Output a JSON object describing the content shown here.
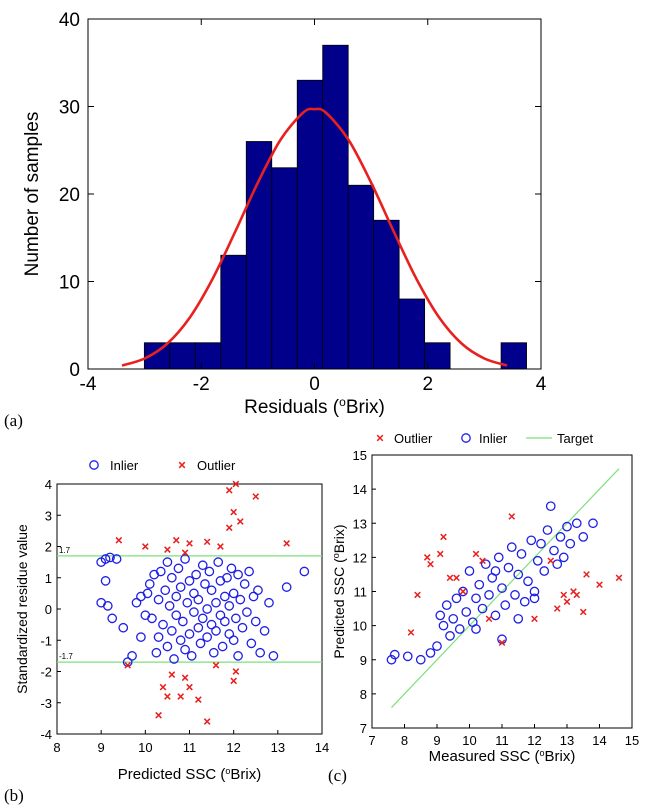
{
  "colors": {
    "bar_fill": "#00008B",
    "bar_edge": "#000000",
    "fit_curve": "#E8201E",
    "inlier": "#1E1EE6",
    "outlier": "#E8201E",
    "threshold": "#7CE07C",
    "target": "#7CE07C"
  },
  "chart_data": [
    {
      "panel": "(a)",
      "type": "bar",
      "xlabel": "Residuals (oBrix)",
      "ylabel": "Number of samples",
      "xlim": [
        -4,
        4
      ],
      "ylim": [
        0,
        40
      ],
      "xticks": [
        "-4",
        "-2",
        "0",
        "2",
        "4"
      ],
      "yticks": [
        "0",
        "10",
        "20",
        "30",
        "40"
      ],
      "grid": false,
      "bin_width": 0.45,
      "bin_centers": [
        -2.78,
        -2.33,
        -1.88,
        -1.43,
        -0.98,
        -0.53,
        -0.08,
        0.37,
        0.82,
        1.27,
        1.72,
        2.17,
        2.62,
        3.07,
        3.52
      ],
      "counts": [
        3,
        3,
        3,
        13,
        26,
        23,
        33,
        37,
        21,
        17,
        8,
        3,
        0,
        0,
        3
      ],
      "fit_curve": {
        "x": [
          -3.4,
          -3.0,
          -2.6,
          -2.2,
          -1.8,
          -1.4,
          -1.0,
          -0.6,
          -0.2,
          0.0,
          0.2,
          0.6,
          1.0,
          1.4,
          1.8,
          2.2,
          2.6,
          3.0,
          3.4
        ],
        "y": [
          0.4,
          1.2,
          2.9,
          5.9,
          10.3,
          15.7,
          21.3,
          26.2,
          29.3,
          29.7,
          29.3,
          26.2,
          21.3,
          15.7,
          10.3,
          5.9,
          2.9,
          1.2,
          0.4
        ]
      }
    },
    {
      "panel": "(b)",
      "type": "scatter",
      "xlabel": "Predicted SSC (oBrix)",
      "ylabel": "Standardized residue value",
      "xlim": [
        8,
        14
      ],
      "ylim": [
        -4,
        4
      ],
      "xticks": [
        "8",
        "9",
        "10",
        "11",
        "12",
        "13",
        "14"
      ],
      "yticks": [
        "-4",
        "-3",
        "-2",
        "-1",
        "0",
        "1",
        "2",
        "3",
        "4"
      ],
      "grid": false,
      "legend_position": "top",
      "legend": [
        "Inlier",
        "Outlier"
      ],
      "threshold_labels": [
        "1.7",
        "-1.7"
      ],
      "thresholds": [
        1.7,
        -1.7
      ],
      "series": [
        {
          "name": "Inlier",
          "points": [
            [
              9.0,
              1.5
            ],
            [
              9.1,
              1.6
            ],
            [
              9.2,
              1.65
            ],
            [
              9.35,
              1.6
            ],
            [
              9.0,
              0.2
            ],
            [
              9.1,
              0.9
            ],
            [
              9.15,
              0.1
            ],
            [
              9.25,
              -0.3
            ],
            [
              9.5,
              -0.6
            ],
            [
              9.6,
              -1.7
            ],
            [
              9.7,
              -1.5
            ],
            [
              9.8,
              0.2
            ],
            [
              9.9,
              -0.9
            ],
            [
              9.9,
              0.4
            ],
            [
              10.0,
              -0.2
            ],
            [
              10.05,
              0.5
            ],
            [
              10.1,
              0.8
            ],
            [
              10.15,
              -0.3
            ],
            [
              10.2,
              1.1
            ],
            [
              10.25,
              -1.4
            ],
            [
              10.3,
              -0.9
            ],
            [
              10.3,
              0.3
            ],
            [
              10.35,
              1.2
            ],
            [
              10.4,
              -0.5
            ],
            [
              10.45,
              0.6
            ],
            [
              10.5,
              -1.2
            ],
            [
              10.5,
              1.5
            ],
            [
              10.55,
              0.1
            ],
            [
              10.6,
              -0.7
            ],
            [
              10.6,
              1.0
            ],
            [
              10.65,
              -1.6
            ],
            [
              10.7,
              0.4
            ],
            [
              10.7,
              -0.2
            ],
            [
              10.75,
              1.3
            ],
            [
              10.8,
              -1.0
            ],
            [
              10.8,
              0.7
            ],
            [
              10.85,
              -0.4
            ],
            [
              10.9,
              1.6
            ],
            [
              10.9,
              -1.3
            ],
            [
              10.95,
              0.2
            ],
            [
              11.0,
              -0.8
            ],
            [
              11.0,
              0.9
            ],
            [
              11.05,
              -1.5
            ],
            [
              11.1,
              0.5
            ],
            [
              11.1,
              -0.1
            ],
            [
              11.15,
              1.1
            ],
            [
              11.2,
              -0.6
            ],
            [
              11.2,
              0.3
            ],
            [
              11.25,
              -1.1
            ],
            [
              11.3,
              1.4
            ],
            [
              11.3,
              -0.3
            ],
            [
              11.35,
              0.8
            ],
            [
              11.4,
              -0.9
            ],
            [
              11.4,
              0.0
            ],
            [
              11.45,
              1.2
            ],
            [
              11.5,
              -0.5
            ],
            [
              11.5,
              0.6
            ],
            [
              11.55,
              -1.4
            ],
            [
              11.6,
              0.2
            ],
            [
              11.6,
              -0.7
            ],
            [
              11.65,
              1.5
            ],
            [
              11.7,
              -0.2
            ],
            [
              11.7,
              0.9
            ],
            [
              11.75,
              -1.2
            ],
            [
              11.8,
              0.4
            ],
            [
              11.8,
              -0.4
            ],
            [
              11.85,
              1.0
            ],
            [
              11.9,
              -0.8
            ],
            [
              11.9,
              0.1
            ],
            [
              11.95,
              1.3
            ],
            [
              12.0,
              -1.0
            ],
            [
              12.0,
              0.5
            ],
            [
              12.05,
              -0.3
            ],
            [
              12.1,
              1.1
            ],
            [
              12.1,
              -1.5
            ],
            [
              12.15,
              0.3
            ],
            [
              12.2,
              -0.6
            ],
            [
              12.25,
              0.8
            ],
            [
              12.3,
              -0.1
            ],
            [
              12.35,
              1.2
            ],
            [
              12.4,
              -1.1
            ],
            [
              12.45,
              0.4
            ],
            [
              12.5,
              -0.4
            ],
            [
              12.55,
              0.6
            ],
            [
              12.6,
              -1.4
            ],
            [
              12.7,
              -0.7
            ],
            [
              12.8,
              0.2
            ],
            [
              13.2,
              0.7
            ],
            [
              13.6,
              1.2
            ],
            [
              12.9,
              -1.5
            ]
          ]
        },
        {
          "name": "Outlier",
          "points": [
            [
              9.4,
              2.2
            ],
            [
              10.0,
              2.0
            ],
            [
              10.5,
              1.9
            ],
            [
              10.7,
              2.2
            ],
            [
              10.9,
              1.8
            ],
            [
              11.0,
              2.1
            ],
            [
              11.4,
              2.15
            ],
            [
              11.7,
              2.0
            ],
            [
              11.9,
              2.6
            ],
            [
              12.0,
              3.1
            ],
            [
              12.05,
              4.0
            ],
            [
              12.15,
              2.8
            ],
            [
              11.9,
              3.8
            ],
            [
              12.5,
              3.6
            ],
            [
              13.2,
              2.1
            ],
            [
              9.6,
              -1.8
            ],
            [
              10.4,
              -2.5
            ],
            [
              10.3,
              -3.4
            ],
            [
              10.5,
              -2.8
            ],
            [
              10.6,
              -2.1
            ],
            [
              10.9,
              -2.2
            ],
            [
              11.0,
              -2.5
            ],
            [
              11.2,
              -2.9
            ],
            [
              11.4,
              -3.6
            ],
            [
              11.6,
              -1.8
            ],
            [
              12.0,
              -2.3
            ],
            [
              12.05,
              -2.0
            ],
            [
              10.8,
              -2.8
            ]
          ]
        }
      ]
    },
    {
      "panel": "(c)",
      "type": "scatter",
      "xlabel": "Measured SSC (oBrix)",
      "ylabel": "Predicted SSC (oBrix)",
      "xlim": [
        7,
        15
      ],
      "ylim": [
        7,
        15
      ],
      "xticks": [
        "7",
        "8",
        "9",
        "10",
        "11",
        "12",
        "13",
        "14",
        "15"
      ],
      "yticks": [
        "7",
        "8",
        "9",
        "10",
        "11",
        "12",
        "13",
        "14",
        "15"
      ],
      "grid": false,
      "legend_position": "top",
      "legend": [
        "Outlier",
        "Inlier",
        "Target"
      ],
      "target_line": {
        "x": [
          7.6,
          14.6
        ],
        "y": [
          7.6,
          14.6
        ]
      },
      "series": [
        {
          "name": "Inlier",
          "points": [
            [
              7.6,
              9.0
            ],
            [
              7.7,
              9.15
            ],
            [
              8.1,
              9.1
            ],
            [
              8.5,
              9.0
            ],
            [
              8.8,
              9.2
            ],
            [
              9.0,
              9.4
            ],
            [
              9.1,
              10.3
            ],
            [
              9.2,
              10.0
            ],
            [
              9.3,
              10.6
            ],
            [
              9.4,
              9.7
            ],
            [
              9.5,
              10.2
            ],
            [
              9.6,
              10.8
            ],
            [
              9.7,
              9.9
            ],
            [
              9.8,
              11.0
            ],
            [
              9.9,
              10.4
            ],
            [
              10.0,
              11.6
            ],
            [
              10.1,
              10.1
            ],
            [
              10.2,
              10.8
            ],
            [
              10.3,
              11.2
            ],
            [
              10.4,
              10.5
            ],
            [
              10.5,
              11.8
            ],
            [
              10.6,
              10.9
            ],
            [
              10.7,
              11.4
            ],
            [
              10.8,
              10.3
            ],
            [
              10.9,
              12.0
            ],
            [
              11.0,
              11.1
            ],
            [
              11.1,
              10.6
            ],
            [
              11.2,
              11.7
            ],
            [
              11.3,
              12.3
            ],
            [
              11.4,
              10.9
            ],
            [
              11.5,
              11.5
            ],
            [
              11.6,
              12.1
            ],
            [
              11.7,
              10.7
            ],
            [
              11.8,
              11.3
            ],
            [
              11.9,
              12.5
            ],
            [
              12.0,
              11.0
            ],
            [
              12.1,
              11.9
            ],
            [
              12.2,
              12.4
            ],
            [
              12.3,
              11.6
            ],
            [
              12.4,
              12.8
            ],
            [
              12.5,
              13.5
            ],
            [
              12.6,
              12.2
            ],
            [
              12.7,
              11.8
            ],
            [
              12.8,
              12.6
            ],
            [
              12.9,
              12.0
            ],
            [
              13.0,
              12.9
            ],
            [
              13.1,
              12.4
            ],
            [
              13.3,
              13.0
            ],
            [
              13.5,
              12.6
            ],
            [
              13.8,
              13.0
            ],
            [
              11.0,
              9.6
            ],
            [
              10.2,
              9.9
            ],
            [
              12.0,
              10.8
            ],
            [
              11.5,
              10.2
            ],
            [
              10.8,
              11.6
            ]
          ]
        },
        {
          "name": "Outlier",
          "points": [
            [
              8.2,
              9.8
            ],
            [
              8.4,
              10.9
            ],
            [
              8.7,
              12.0
            ],
            [
              8.8,
              11.8
            ],
            [
              9.1,
              12.1
            ],
            [
              9.2,
              12.6
            ],
            [
              9.4,
              11.4
            ],
            [
              9.6,
              11.4
            ],
            [
              9.8,
              11.0
            ],
            [
              10.2,
              12.1
            ],
            [
              10.4,
              11.9
            ],
            [
              10.6,
              10.2
            ],
            [
              11.0,
              9.5
            ],
            [
              11.3,
              13.2
            ],
            [
              12.0,
              10.2
            ],
            [
              12.5,
              11.9
            ],
            [
              12.7,
              10.5
            ],
            [
              13.0,
              10.7
            ],
            [
              13.2,
              11.0
            ],
            [
              13.3,
              10.9
            ],
            [
              13.5,
              10.4
            ],
            [
              13.6,
              11.5
            ],
            [
              14.0,
              11.2
            ],
            [
              14.6,
              11.4
            ],
            [
              12.9,
              10.9
            ]
          ]
        }
      ]
    }
  ]
}
